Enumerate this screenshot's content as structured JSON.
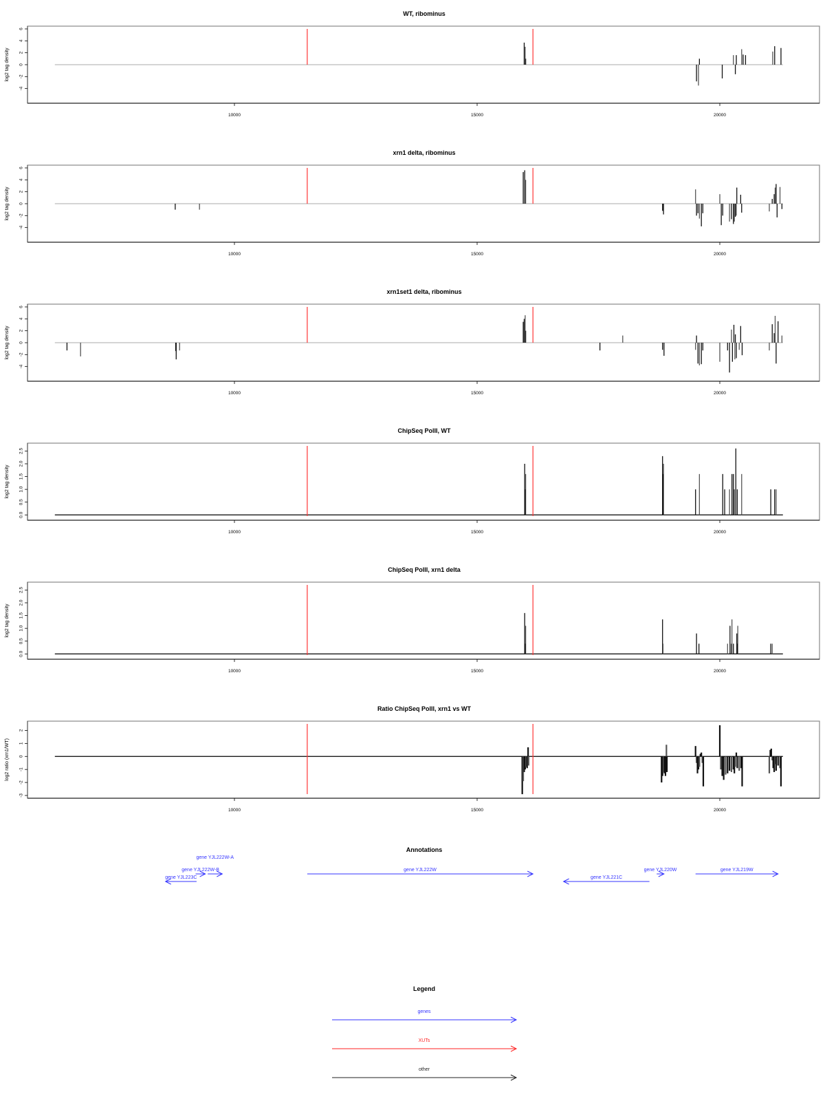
{
  "colors": {
    "gene": "#3333ff",
    "xut": "#ff2222",
    "other": "#222222",
    "marker": "#ff3333",
    "baseline": "#aaaaaa",
    "bars": "#111111"
  },
  "chart_data": [
    {
      "type": "bar",
      "title": "WT, ribominus",
      "ylabel": "log2 tag density",
      "xlim": [
        6000,
        22200
      ],
      "ylim": [
        -6,
        6
      ],
      "yticks": [
        "-4",
        "-2",
        "0",
        "2",
        "4",
        "6"
      ],
      "xticks": [
        "10000",
        "15000",
        "20000"
      ],
      "baseline": [
        6300,
        21300
      ],
      "markers": [
        11500,
        16150
      ],
      "bars": [
        [
          15970,
          3.7
        ],
        [
          15990,
          3.0
        ],
        [
          16000,
          1.0
        ],
        [
          19520,
          -2.8
        ],
        [
          19560,
          -3.5
        ],
        [
          19580,
          1.0
        ],
        [
          20050,
          -2.3
        ],
        [
          20280,
          1.6
        ],
        [
          20320,
          -1.6
        ],
        [
          20340,
          1.6
        ],
        [
          20450,
          2.6
        ],
        [
          20480,
          1.7
        ],
        [
          20530,
          1.6
        ],
        [
          21090,
          2.2
        ],
        [
          21130,
          3.1
        ],
        [
          21260,
          2.8
        ]
      ]
    },
    {
      "type": "bar",
      "title": "xrn1 delta, ribominus",
      "ylabel": "log2 tag density",
      "xlim": [
        6000,
        22200
      ],
      "ylim": [
        -6,
        6
      ],
      "yticks": [
        "-4",
        "-2",
        "0",
        "2",
        "4",
        "6"
      ],
      "xticks": [
        "10000",
        "15000",
        "20000"
      ],
      "baseline": [
        6300,
        21300
      ],
      "markers": [
        11500,
        16150
      ],
      "bars": [
        [
          8780,
          -1.0
        ],
        [
          9280,
          -1.0
        ],
        [
          15950,
          5.3
        ],
        [
          15980,
          5.6
        ],
        [
          16000,
          4.0
        ],
        [
          18820,
          -1.2
        ],
        [
          18840,
          -1.8
        ],
        [
          19500,
          2.4
        ],
        [
          19520,
          -2.0
        ],
        [
          19550,
          -1.6
        ],
        [
          19580,
          -2.5
        ],
        [
          19620,
          -3.8
        ],
        [
          19650,
          -1.6
        ],
        [
          20000,
          1.6
        ],
        [
          20030,
          -3.6
        ],
        [
          20060,
          -2.0
        ],
        [
          20200,
          -3.0
        ],
        [
          20240,
          -2.6
        ],
        [
          20280,
          -3.4
        ],
        [
          20300,
          -3.0
        ],
        [
          20320,
          -2.2
        ],
        [
          20350,
          2.7
        ],
        [
          20340,
          -2.0
        ],
        [
          20430,
          1.5
        ],
        [
          20450,
          -1.5
        ],
        [
          21020,
          -1.3
        ],
        [
          21080,
          0.8
        ],
        [
          21120,
          1.6
        ],
        [
          21140,
          2.7
        ],
        [
          21160,
          3.3
        ],
        [
          21180,
          -2.3
        ],
        [
          21240,
          2.8
        ],
        [
          21280,
          -0.9
        ]
      ]
    },
    {
      "type": "bar",
      "title": "xrn1set1 delta, ribominus",
      "ylabel": "log2 tag density",
      "xlim": [
        6000,
        22200
      ],
      "ylim": [
        -6,
        6
      ],
      "yticks": [
        "-4",
        "-2",
        "0",
        "2",
        "4",
        "6"
      ],
      "xticks": [
        "10000",
        "15000",
        "20000"
      ],
      "baseline": [
        6300,
        21300
      ],
      "markers": [
        11500,
        16150
      ],
      "bars": [
        [
          6550,
          -1.3
        ],
        [
          6830,
          -2.3
        ],
        [
          8790,
          -1.4
        ],
        [
          8800,
          -2.8
        ],
        [
          8870,
          -1.3
        ],
        [
          15950,
          3.5
        ],
        [
          15970,
          4.0
        ],
        [
          15990,
          4.6
        ],
        [
          16000,
          2.0
        ],
        [
          17530,
          -1.3
        ],
        [
          18000,
          1.2
        ],
        [
          18820,
          -1.2
        ],
        [
          18850,
          -2.2
        ],
        [
          19500,
          -1.2
        ],
        [
          19520,
          1.2
        ],
        [
          19550,
          -3.5
        ],
        [
          19580,
          -3.8
        ],
        [
          19620,
          -3.6
        ],
        [
          19650,
          -1.3
        ],
        [
          20000,
          -3.2
        ],
        [
          20160,
          -1.3
        ],
        [
          20200,
          -5.0
        ],
        [
          20240,
          2.2
        ],
        [
          20260,
          -3.2
        ],
        [
          20290,
          3.0
        ],
        [
          20310,
          -2.8
        ],
        [
          20320,
          1.4
        ],
        [
          20340,
          -2.6
        ],
        [
          20400,
          -1.2
        ],
        [
          20430,
          2.8
        ],
        [
          20460,
          -2.1
        ],
        [
          21020,
          -1.3
        ],
        [
          21080,
          3.1
        ],
        [
          21120,
          1.6
        ],
        [
          21140,
          4.5
        ],
        [
          21160,
          -3.5
        ],
        [
          21200,
          3.6
        ],
        [
          21280,
          1.2
        ]
      ]
    },
    {
      "type": "bar",
      "title": "ChipSeq PolII, WT",
      "ylabel": "log2 tag density",
      "xlim": [
        6000,
        22200
      ],
      "ylim": [
        -0.1,
        2.7
      ],
      "yticks": [
        "0.0",
        "0.5",
        "1.0",
        "1.5",
        "2.0",
        "2.5"
      ],
      "xticks": [
        "10000",
        "15000",
        "20000"
      ],
      "baseline": [
        6300,
        21300
      ],
      "markers": [
        11500,
        16150
      ],
      "bars": [
        [
          15980,
          2.0
        ],
        [
          16000,
          1.6
        ],
        [
          15990,
          1.0
        ],
        [
          18820,
          2.3
        ],
        [
          18840,
          2.0
        ],
        [
          18830,
          1.6
        ],
        [
          19500,
          1.0
        ],
        [
          19580,
          1.6
        ],
        [
          20060,
          1.6
        ],
        [
          20100,
          1.0
        ],
        [
          20200,
          1.0
        ],
        [
          20250,
          1.6
        ],
        [
          20280,
          1.6
        ],
        [
          20300,
          1.0
        ],
        [
          20330,
          2.6
        ],
        [
          20360,
          1.0
        ],
        [
          20450,
          1.6
        ],
        [
          21050,
          1.0
        ],
        [
          21130,
          1.0
        ],
        [
          21160,
          1.0
        ]
      ]
    },
    {
      "type": "bar",
      "title": "ChipSeq PolII, xrn1 delta",
      "ylabel": "log2 tag density",
      "xlim": [
        6000,
        22200
      ],
      "ylim": [
        -0.1,
        2.7
      ],
      "yticks": [
        "0.0",
        "0.5",
        "1.0",
        "1.5",
        "2.0",
        "2.5"
      ],
      "xticks": [
        "10000",
        "15000",
        "20000"
      ],
      "baseline": [
        6300,
        21300
      ],
      "markers": [
        11500,
        16150
      ],
      "bars": [
        [
          15980,
          1.6
        ],
        [
          16000,
          1.1
        ],
        [
          15990,
          0.4
        ],
        [
          18820,
          1.35
        ],
        [
          18830,
          0.4
        ],
        [
          19520,
          0.8
        ],
        [
          19570,
          0.4
        ],
        [
          20160,
          0.4
        ],
        [
          20210,
          1.1
        ],
        [
          20240,
          0.4
        ],
        [
          20250,
          1.35
        ],
        [
          20280,
          0.4
        ],
        [
          20350,
          0.8
        ],
        [
          20370,
          1.1
        ],
        [
          20360,
          0.4
        ],
        [
          21050,
          0.4
        ],
        [
          21080,
          0.4
        ]
      ]
    },
    {
      "type": "area",
      "title": "Ratio ChipSeq PolII, xrn1 vs WT",
      "ylabel": "log2 ratio (xrn1/WT)",
      "xlim": [
        6000,
        22200
      ],
      "ylim": [
        -3,
        2.5
      ],
      "yticks": [
        "-3",
        "-2",
        "-1",
        "0",
        "1",
        "2"
      ],
      "xticks": [
        "10000",
        "15000",
        "20000"
      ],
      "baseline": [
        6300,
        21300
      ],
      "markers": [
        11500,
        16150
      ],
      "bars": [
        [
          15930,
          -2.9
        ],
        [
          15950,
          -1.9
        ],
        [
          15970,
          -1.2
        ],
        [
          15990,
          -1.0
        ],
        [
          16010,
          -0.8
        ],
        [
          16030,
          -0.9
        ],
        [
          16050,
          0.7
        ],
        [
          16060,
          -0.7
        ],
        [
          18800,
          -2.0
        ],
        [
          18820,
          -1.5
        ],
        [
          18840,
          -1.2
        ],
        [
          18860,
          -1.3
        ],
        [
          18880,
          -1.5
        ],
        [
          18900,
          0.9
        ],
        [
          18910,
          -1.2
        ],
        [
          19500,
          0.8
        ],
        [
          19520,
          -0.5
        ],
        [
          19540,
          -1.3
        ],
        [
          19560,
          -1.0
        ],
        [
          19580,
          -0.8
        ],
        [
          19600,
          0.2
        ],
        [
          19620,
          0.3
        ],
        [
          19640,
          -0.5
        ],
        [
          19660,
          -2.3
        ],
        [
          20000,
          2.4
        ],
        [
          20020,
          -1.0
        ],
        [
          20050,
          -1.5
        ],
        [
          20080,
          -1.8
        ],
        [
          20120,
          -1.4
        ],
        [
          20160,
          -1.3
        ],
        [
          20200,
          -1.1
        ],
        [
          20240,
          -1.2
        ],
        [
          20280,
          -1.0
        ],
        [
          20300,
          -1.3
        ],
        [
          20320,
          -0.8
        ],
        [
          20340,
          0.3
        ],
        [
          20360,
          -0.9
        ],
        [
          20400,
          -1.1
        ],
        [
          20440,
          -0.9
        ],
        [
          20460,
          -2.3
        ],
        [
          21020,
          -1.3
        ],
        [
          21040,
          0.5
        ],
        [
          21060,
          0.6
        ],
        [
          21080,
          -0.3
        ],
        [
          21100,
          -0.9
        ],
        [
          21120,
          -1.2
        ],
        [
          21140,
          -0.6
        ],
        [
          21160,
          -1.1
        ],
        [
          21200,
          -0.7
        ],
        [
          21240,
          -0.9
        ],
        [
          21260,
          -2.3
        ]
      ]
    }
  ],
  "annotations": {
    "title": "Annotations",
    "xlim": [
      6000,
      22200
    ],
    "items": [
      {
        "label": "gene YJL223C",
        "start": 9220,
        "end": 8580,
        "row": 2,
        "kind": "gene"
      },
      {
        "label": "gene YJL222W-B",
        "start": 9200,
        "end": 9400,
        "row": 1,
        "kind": "gene"
      },
      {
        "label": "gene YJL222W-A",
        "start": 9450,
        "end": 9750,
        "row": 1,
        "kind": "gene"
      },
      {
        "label": "gene YJL222W",
        "start": 11500,
        "end": 16150,
        "row": 1,
        "kind": "gene"
      },
      {
        "label": "gene YJL221C",
        "start": 18550,
        "end": 16780,
        "row": 2,
        "kind": "gene"
      },
      {
        "label": "gene YJL220W",
        "start": 18700,
        "end": 18850,
        "row": 1,
        "kind": "gene"
      },
      {
        "label": "gene YJL219W",
        "start": 19500,
        "end": 21200,
        "row": 1,
        "kind": "gene"
      }
    ]
  },
  "legend": {
    "title": "Legend",
    "items": [
      {
        "label": "genes",
        "kind": "gene"
      },
      {
        "label": "XUTs",
        "kind": "xut"
      },
      {
        "label": "other",
        "kind": "other"
      }
    ]
  }
}
